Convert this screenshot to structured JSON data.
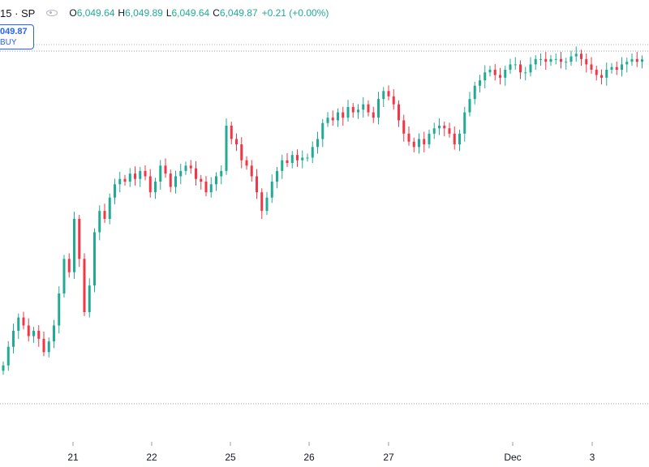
{
  "legend": {
    "symbol": "15 · SP",
    "o_label": "O",
    "o_value": "6,049.64",
    "h_label": "H",
    "h_value": "6,049.89",
    "l_label": "L",
    "l_value": "6,049.64",
    "c_label": "C",
    "c_value": "6,049.87",
    "change": "+0.21 (+0.00%)"
  },
  "buy_box": {
    "price": "049.87",
    "label": "BUY"
  },
  "colors": {
    "up": "#22ab94",
    "down": "#f23645",
    "grid": "#9aa0a6",
    "text": "#131722",
    "accent": "#2962ff"
  },
  "chart_data": {
    "type": "candlestick",
    "x_tick_labels": [
      "21",
      "22",
      "25",
      "26",
      "27",
      "Dec",
      "3"
    ],
    "price_lines": [
      "upper",
      "lower"
    ],
    "closes": [
      5935,
      5942,
      5948,
      5953,
      5950,
      5946,
      5948,
      5945,
      5940,
      5944,
      5950,
      5962,
      5975,
      5970,
      5990,
      5975,
      5955,
      5965,
      5985,
      5993,
      5990,
      5998,
      6003,
      6005,
      6004,
      6007,
      6005,
      6008,
      6006,
      6000,
      6004,
      6010,
      6007,
      6002,
      6006,
      6008,
      6010,
      6009,
      6005,
      6004,
      6000,
      6003,
      6006,
      6008,
      6025,
      6020,
      6018,
      6012,
      6010,
      6006,
      6000,
      5993,
      5998,
      6004,
      6008,
      6012,
      6011,
      6014,
      6012,
      6013,
      6013,
      6017,
      6020,
      6026,
      6028,
      6027,
      6030,
      6028,
      6032,
      6030,
      6031,
      6033,
      6030,
      6028,
      6035,
      6038,
      6036,
      6033,
      6027,
      6022,
      6019,
      6017,
      6020,
      6018,
      6022,
      6024,
      6025,
      6024,
      6022,
      6018,
      6022,
      6030,
      6035,
      6040,
      6042,
      6045,
      6046,
      6044,
      6043,
      6046,
      6048,
      6048,
      6045,
      6045,
      6048,
      6050,
      6050,
      6049,
      6050,
      6050,
      6049,
      6049,
      6051,
      6052,
      6050,
      6048,
      6046,
      6044,
      6043,
      6046,
      6047,
      6046,
      6048,
      6049,
      6050,
      6049,
      6049.87
    ]
  }
}
